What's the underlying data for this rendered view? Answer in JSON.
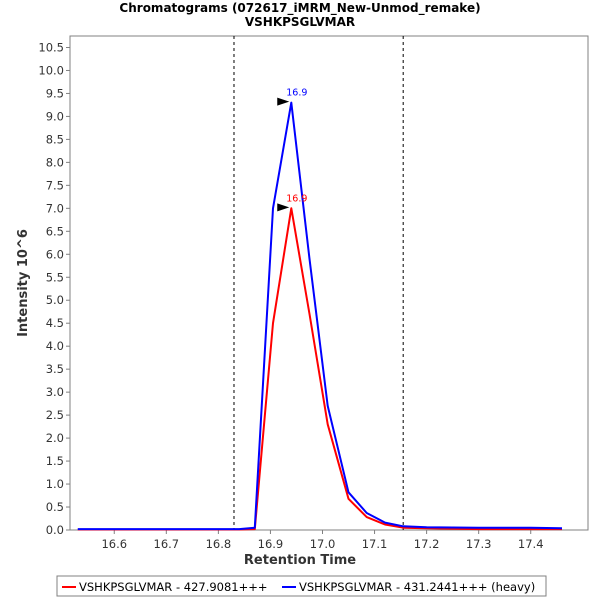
{
  "chart_data": {
    "type": "line",
    "title": "Chromatograms (072617_iMRM_New-Unmod_remake)",
    "subtitle": "VSHKPSGLVMAR",
    "xlabel": "Retention Time",
    "ylabel": "Intensity 10^6",
    "xlim": [
      16.515,
      17.51
    ],
    "ylim": [
      0,
      10.75
    ],
    "xticks": [
      16.6,
      16.7,
      16.8,
      16.9,
      17.0,
      17.1,
      17.2,
      17.3,
      17.4
    ],
    "xtick_labels": [
      "16.6",
      "16.7",
      "16.8",
      "16.9",
      "17.0",
      "17.1",
      "17.2",
      "17.3",
      "17.4"
    ],
    "yticks": [
      0.0,
      0.5,
      1.0,
      1.5,
      2.0,
      2.5,
      3.0,
      3.5,
      4.0,
      4.5,
      5.0,
      5.5,
      6.0,
      6.5,
      7.0,
      7.5,
      8.0,
      8.5,
      9.0,
      9.5,
      10.0,
      10.5
    ],
    "ytick_labels": [
      "0.0",
      "0.5",
      "1.0",
      "1.5",
      "2.0",
      "2.5",
      "3.0",
      "3.5",
      "4.0",
      "4.5",
      "5.0",
      "5.5",
      "6.0",
      "6.5",
      "7.0",
      "7.5",
      "8.0",
      "8.5",
      "9.0",
      "9.5",
      "10.0",
      "10.5"
    ],
    "grid": false,
    "legend_position": "bottom",
    "boundaries": [
      16.83,
      17.155
    ],
    "series": [
      {
        "name": "VSHKPSGLVMAR - 427.9081+++",
        "color": "#ff0000",
        "x": [
          16.53,
          16.6,
          16.7,
          16.8,
          16.84,
          16.87,
          16.905,
          16.94,
          16.975,
          17.01,
          17.05,
          17.085,
          17.12,
          17.155,
          17.2,
          17.3,
          17.4,
          17.46
        ],
        "y": [
          0.01,
          0.01,
          0.01,
          0.01,
          0.01,
          0.02,
          4.5,
          7.0,
          4.7,
          2.3,
          0.68,
          0.28,
          0.12,
          0.05,
          0.04,
          0.02,
          0.02,
          0.02
        ],
        "peak": {
          "x": 16.94,
          "y": 7.0,
          "label": "16.9"
        }
      },
      {
        "name": "VSHKPSGLVMAR - 431.2441+++ (heavy)",
        "color": "#0000ff",
        "x": [
          16.53,
          16.6,
          16.7,
          16.8,
          16.84,
          16.87,
          16.905,
          16.94,
          16.975,
          17.01,
          17.05,
          17.085,
          17.12,
          17.155,
          17.2,
          17.3,
          17.4,
          17.46
        ],
        "y": [
          0.02,
          0.02,
          0.02,
          0.02,
          0.02,
          0.05,
          7.0,
          9.3,
          5.9,
          2.7,
          0.82,
          0.37,
          0.16,
          0.08,
          0.06,
          0.05,
          0.05,
          0.04
        ],
        "peak": {
          "x": 16.94,
          "y": 9.3,
          "label": "16.9"
        }
      }
    ]
  }
}
